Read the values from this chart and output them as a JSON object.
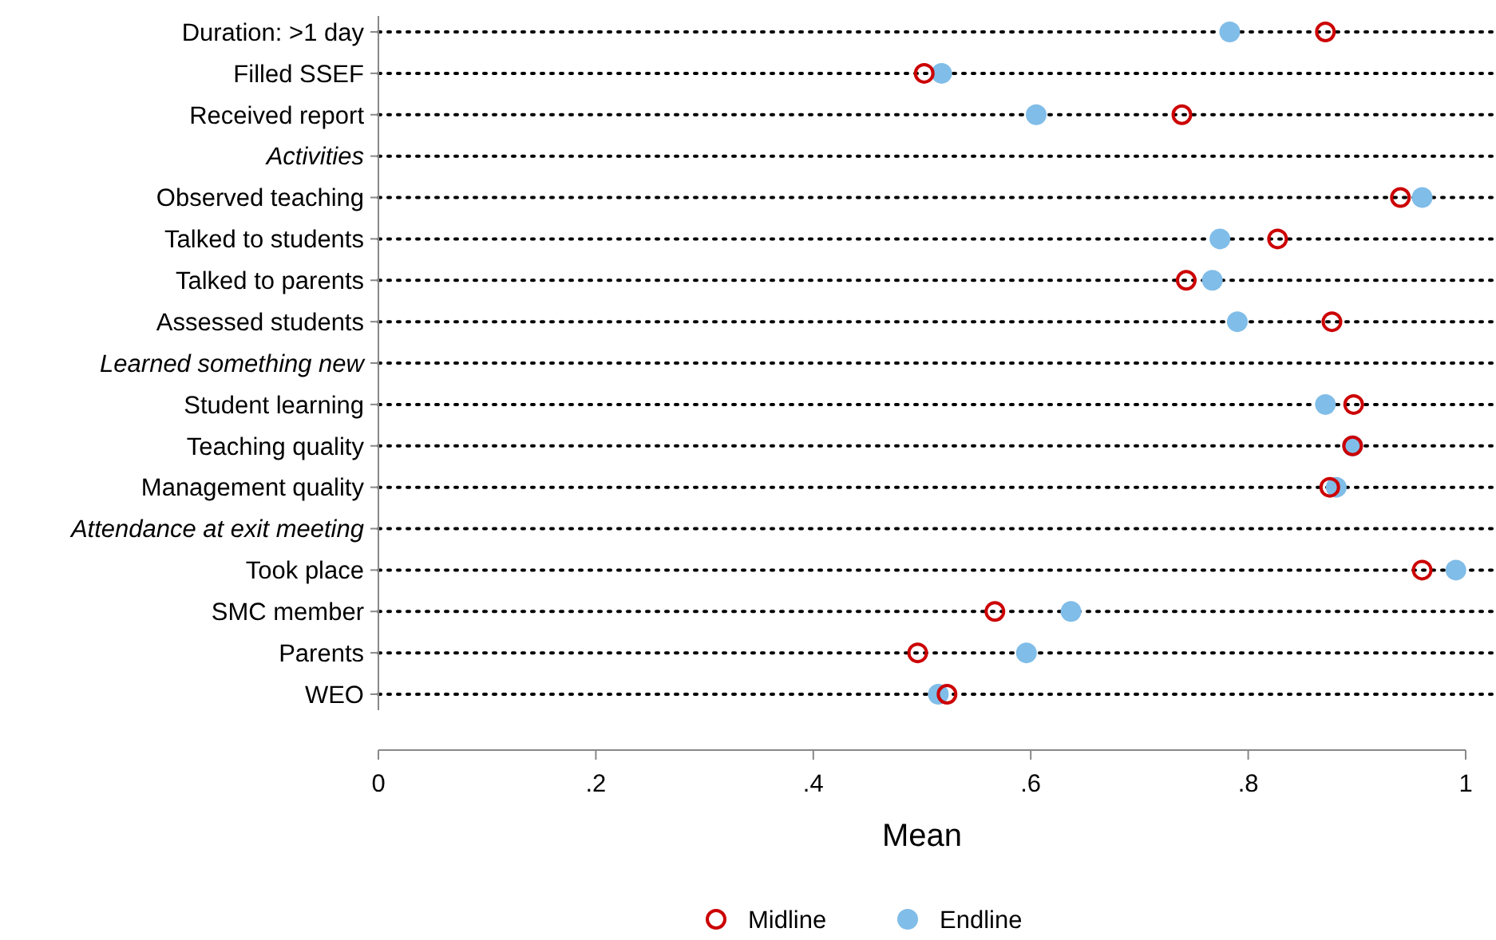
{
  "chart_data": {
    "type": "scatter",
    "orientation": "horizontal",
    "xlabel": "Mean",
    "categories": [
      "Duration: >1 day",
      "Filled SSEF",
      "Received report",
      "Activities",
      "Observed teaching",
      "Talked to students",
      "Talked to parents",
      "Assessed students",
      "Learned something new",
      "Student learning",
      "Teaching quality",
      "Management quality",
      "Attendance at exit meeting",
      "Took place",
      "SMC member",
      "Parents",
      "WEO"
    ],
    "series": [
      {
        "name": "Midline",
        "color": "#cc0000",
        "values": [
          0.871,
          0.502,
          0.739,
          null,
          0.94,
          0.827,
          0.743,
          0.877,
          null,
          0.897,
          0.896,
          0.875,
          null,
          0.96,
          0.567,
          0.496,
          0.523
        ]
      },
      {
        "name": "Endline",
        "color": "#80bde8",
        "values": [
          0.783,
          0.518,
          0.605,
          null,
          0.96,
          0.774,
          0.767,
          0.79,
          null,
          0.871,
          0.896,
          0.881,
          null,
          0.991,
          0.637,
          0.596,
          0.515
        ]
      }
    ],
    "xlim": [
      0,
      1
    ],
    "xticks": [
      0,
      {
        "value": 0.2,
        "label": ".2"
      },
      {
        "value": 0.4,
        "label": ".4"
      },
      {
        "value": 0.6,
        "label": ".6"
      },
      {
        "value": 0.8,
        "label": ".8"
      },
      1
    ],
    "grid": "y",
    "legend": "bottom",
    "marker": "circle"
  }
}
